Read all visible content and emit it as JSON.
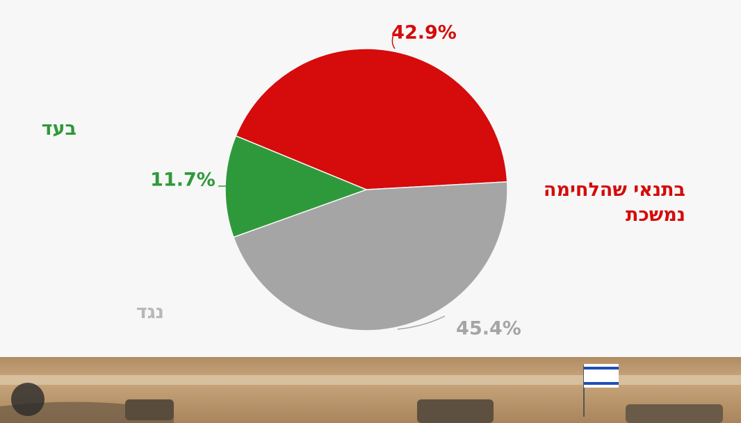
{
  "chart_data": {
    "type": "pie",
    "categories": [
      "בתנאי שהלחימה נמשכת",
      "נגד",
      "בעד"
    ],
    "values": [
      42.9,
      45.4,
      11.7
    ],
    "value_labels": [
      "42.9%",
      "45.4%",
      "11.7%"
    ],
    "colors": [
      "#d60b0b",
      "#a5a5a5",
      "#2e993b"
    ]
  }
}
